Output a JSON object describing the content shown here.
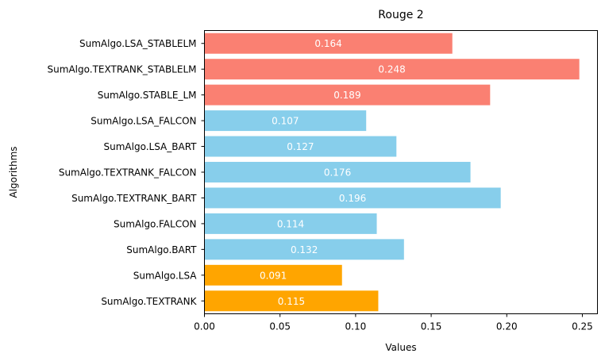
{
  "chart_data": {
    "type": "bar",
    "orientation": "horizontal",
    "title": "Rouge 2",
    "xlabel": "Values",
    "ylabel": "Algorithms",
    "xlim": [
      0.0,
      0.26
    ],
    "xticks": [
      "0.00",
      "0.05",
      "0.10",
      "0.15",
      "0.20",
      "0.25"
    ],
    "grid": false,
    "categories": [
      "SumAlgo.LSA_STABLELM",
      "SumAlgo.TEXTRANK_STABLELM",
      "SumAlgo.STABLE_LM",
      "SumAlgo.LSA_FALCON",
      "SumAlgo.LSA_BART",
      "SumAlgo.TEXTRANK_FALCON",
      "SumAlgo.TEXTRANK_BART",
      "SumAlgo.FALCON",
      "SumAlgo.BART",
      "SumAlgo.LSA",
      "SumAlgo.TEXTRANK"
    ],
    "values": [
      0.164,
      0.248,
      0.189,
      0.107,
      0.127,
      0.176,
      0.196,
      0.114,
      0.132,
      0.091,
      0.115
    ],
    "data_labels": [
      "0.164",
      "0.248",
      "0.189",
      "0.107",
      "0.127",
      "0.176",
      "0.196",
      "0.114",
      "0.132",
      "0.091",
      "0.115"
    ],
    "colors": [
      "#fa8072",
      "#fa8072",
      "#fa8072",
      "#87ceeb",
      "#87ceeb",
      "#87ceeb",
      "#87ceeb",
      "#87ceeb",
      "#87ceeb",
      "#ffa500",
      "#ffa500"
    ]
  }
}
